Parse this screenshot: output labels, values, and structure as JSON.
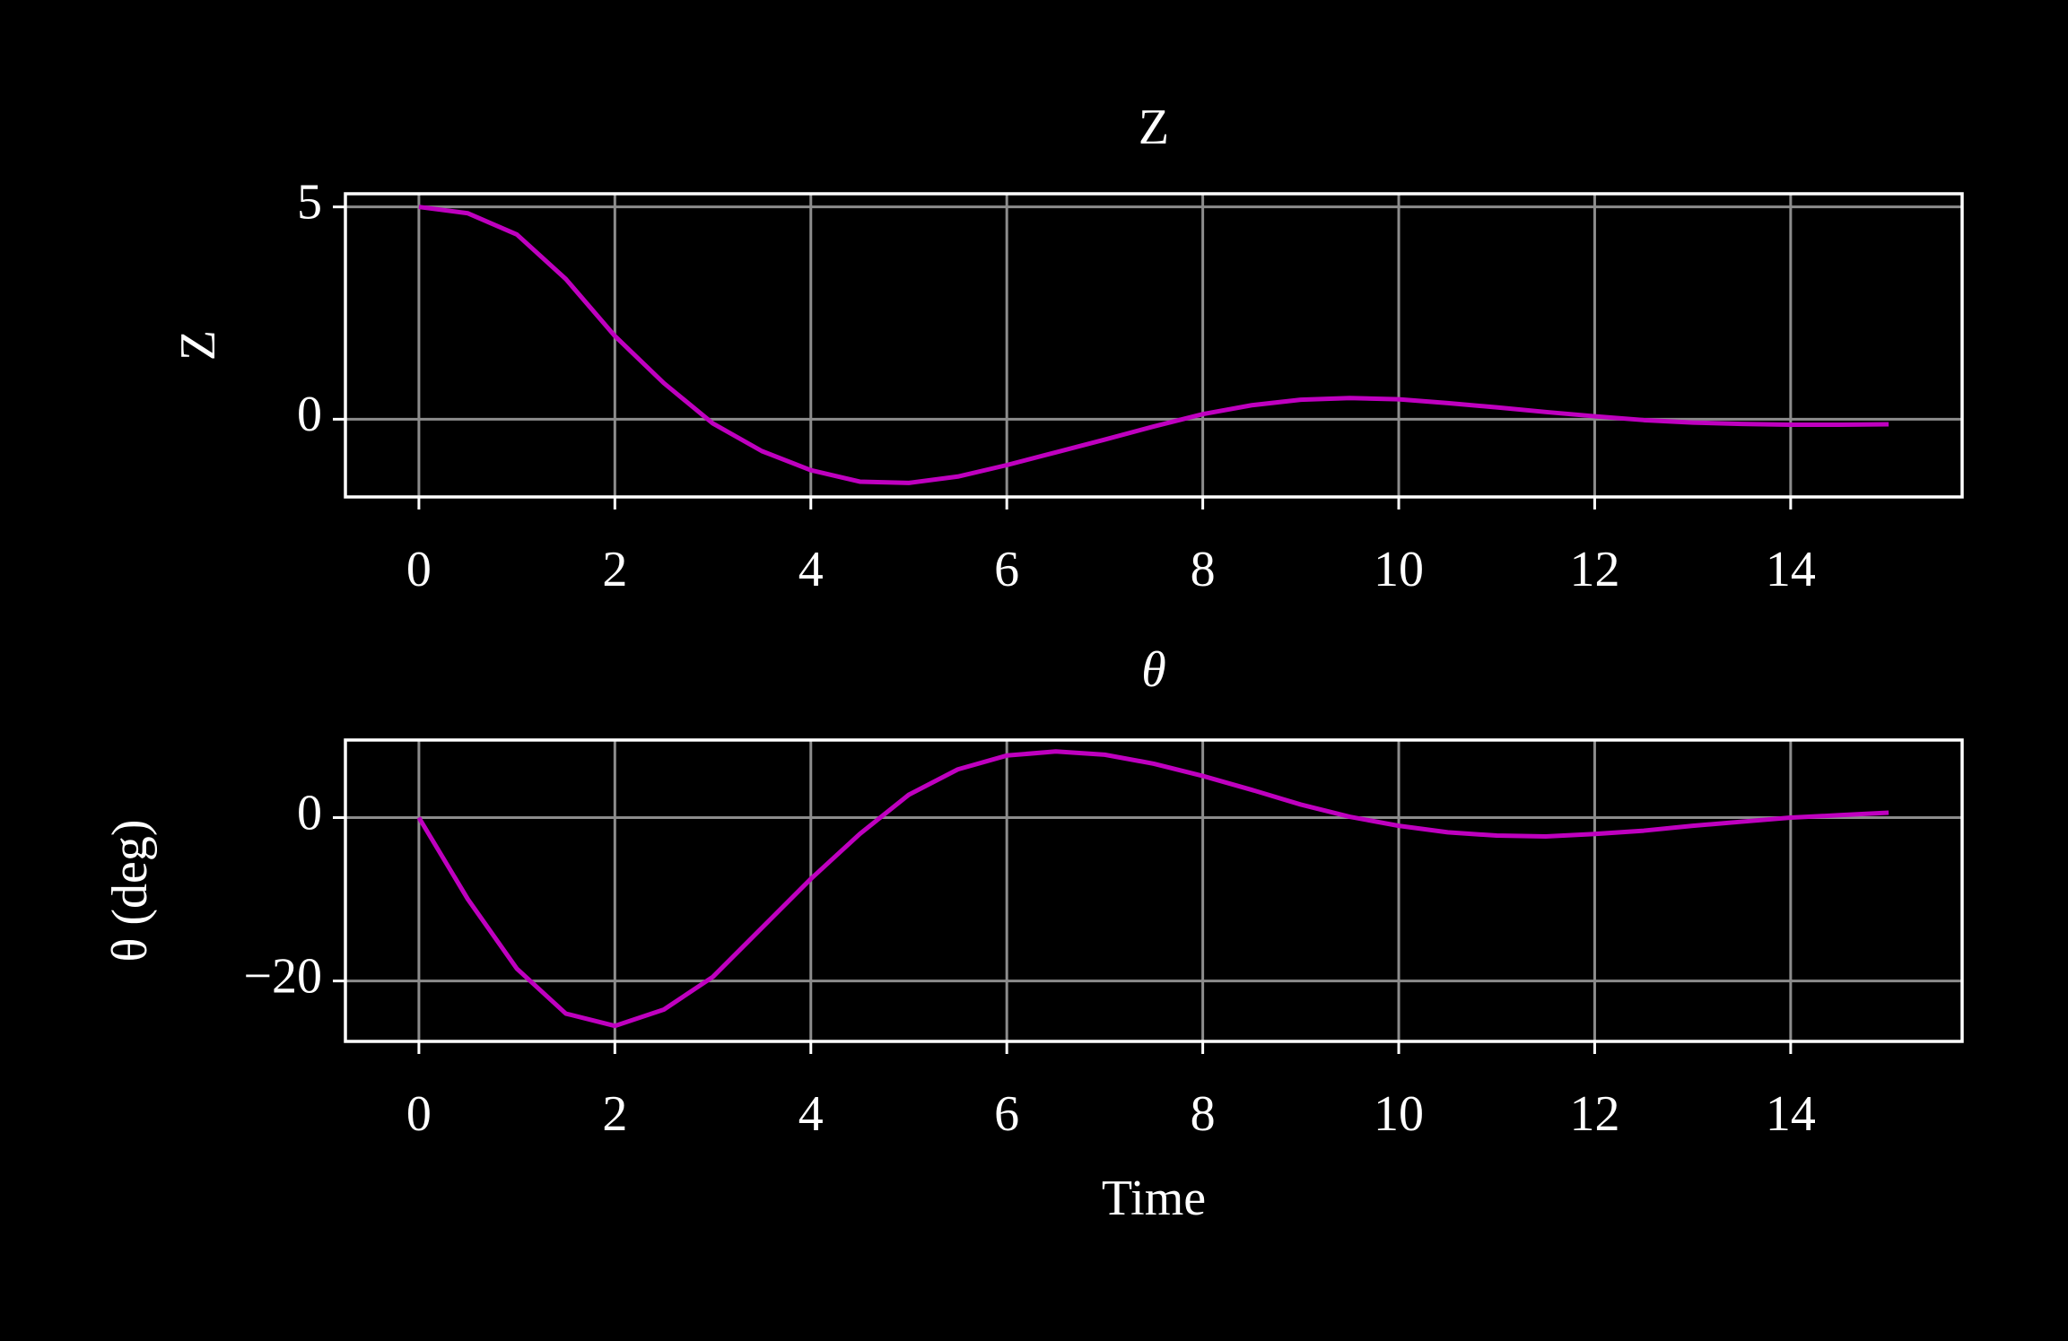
{
  "chart_data": [
    {
      "type": "line",
      "title": "Z",
      "ylabel": "Z",
      "color": "#bf00bf",
      "grid": true,
      "x": [
        0,
        0.5,
        1,
        1.5,
        2,
        2.5,
        3,
        3.5,
        4,
        4.5,
        5,
        5.5,
        6,
        6.5,
        7,
        7.5,
        8,
        8.5,
        9,
        9.5,
        10,
        10.5,
        11,
        11.5,
        12,
        12.5,
        13,
        13.5,
        14,
        14.5,
        15
      ],
      "values": [
        5,
        4.85,
        4.35,
        3.3,
        1.96,
        0.85,
        -0.1,
        -0.75,
        -1.2,
        -1.47,
        -1.5,
        -1.35,
        -1.08,
        -0.78,
        -0.48,
        -0.17,
        0.12,
        0.33,
        0.46,
        0.5,
        0.47,
        0.38,
        0.28,
        0.17,
        0.07,
        -0.02,
        -0.08,
        -0.11,
        -0.13,
        -0.13,
        -0.12
      ],
      "xlim": [
        -0.75,
        15.75
      ],
      "xticks": [
        0,
        2,
        4,
        6,
        8,
        10,
        12,
        14
      ],
      "ylim": [
        -1.83,
        5.31
      ],
      "yticks": [
        0,
        5
      ]
    },
    {
      "type": "line",
      "title": "θ",
      "ylabel": "θ (deg)",
      "xlabel": "Time",
      "color": "#bf00bf",
      "grid": true,
      "x": [
        0,
        0.5,
        1,
        1.5,
        2,
        2.5,
        3,
        3.5,
        4,
        4.5,
        5,
        5.5,
        6,
        6.5,
        7,
        7.5,
        8,
        8.5,
        9,
        9.5,
        10,
        10.5,
        11,
        11.5,
        12,
        12.5,
        13,
        13.5,
        14,
        14.5,
        15
      ],
      "values": [
        0,
        -10,
        -18.5,
        -24,
        -25.5,
        -23.5,
        -19.5,
        -13.5,
        -7.5,
        -2,
        2.8,
        5.9,
        7.6,
        8.1,
        7.7,
        6.6,
        5.1,
        3.4,
        1.6,
        0.1,
        -1.0,
        -1.8,
        -2.2,
        -2.3,
        -2.0,
        -1.6,
        -1.0,
        -0.5,
        0,
        0.3,
        0.6
      ],
      "xlim": [
        -0.75,
        15.75
      ],
      "xticks": [
        0,
        2,
        4,
        6,
        8,
        10,
        12,
        14
      ],
      "ylim": [
        -27.4,
        9.5
      ],
      "yticks": [
        {
          "value": -20,
          "label": "−20"
        },
        0
      ]
    }
  ]
}
